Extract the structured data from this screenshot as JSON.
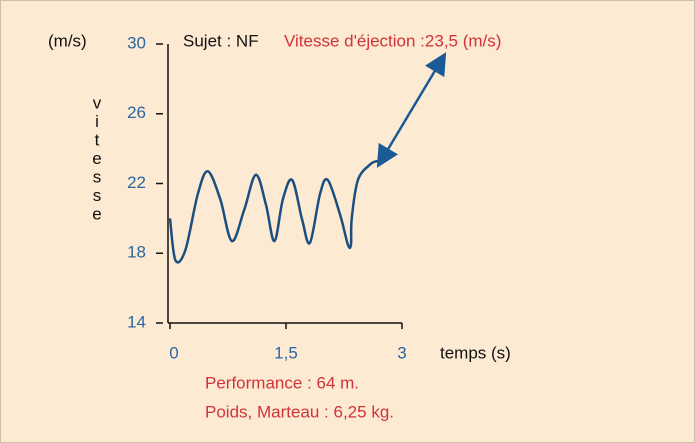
{
  "chart_data": {
    "type": "line",
    "subject": "Sujet : NF",
    "annotation": "Vitesse d'éjection :23,5 (m/s)",
    "y_unit": "(m/s)",
    "ylabel": "vitesse",
    "xlabel": "temps (s)",
    "notes": [
      "Performance : 64 m.",
      "Poids, Marteau : 6,25 kg."
    ],
    "x": [
      0,
      0.07,
      0.2,
      0.36,
      0.49,
      0.65,
      0.8,
      0.96,
      1.11,
      1.24,
      1.35,
      1.46,
      1.58,
      1.71,
      1.81,
      1.94,
      2.04,
      2.2,
      2.3,
      2.34,
      2.35,
      2.43,
      2.59,
      2.69
    ],
    "series": [
      {
        "color": "#1a4f80",
        "values": [
          20,
          17.6,
          18.2,
          21.4,
          22.7,
          21.1,
          18.7,
          20.5,
          22.5,
          20.8,
          18.7,
          21.1,
          22.2,
          19.9,
          18.6,
          21.4,
          22.2,
          20.2,
          18.5,
          18.5,
          20,
          22.2,
          23.1,
          23.3
        ]
      }
    ],
    "xlim": [
      0,
      3
    ],
    "xticks": [
      0,
      {
        "value": 1.5,
        "label": "1,5"
      },
      3
    ],
    "ylim": [
      14,
      30
    ],
    "yticks": [
      14,
      18,
      22,
      26,
      30
    ]
  }
}
